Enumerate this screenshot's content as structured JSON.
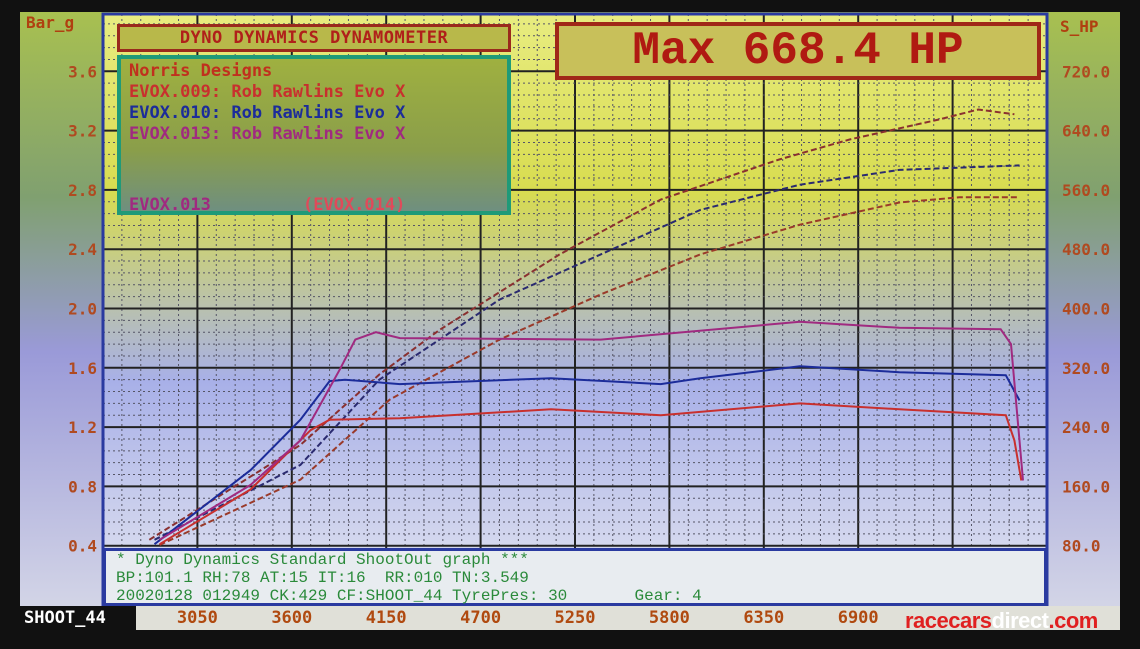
{
  "header": {
    "title": "DYNO DYNAMICS DYNAMOMETER"
  },
  "max_display": "Max 668.4 HP",
  "legend": {
    "company": "Norris Designs",
    "entries": [
      {
        "label": "EVOX.009: Rob Rawlins Evo X",
        "color": "#c8302e"
      },
      {
        "label": "EVOX.010: Rob Rawlins Evo X",
        "color": "#1c2c9a"
      },
      {
        "label": "EVOX.013: Rob Rawlins Evo X",
        "color": "#a02a80"
      }
    ],
    "current": "EVOX.013",
    "next": "(EVOX.014)"
  },
  "info": {
    "line1": "* Dyno Dynamics Standard ShootOut graph ***",
    "line2": "BP:101.1 RH:78 AT:15 IT:16  RR:010 TN:3.549",
    "line3": "20020128 012949 CK:429 CF:SHOOT_44 TyrePres: 30       Gear: 4"
  },
  "x_label_left": "SHOOT_44",
  "watermark": {
    "a": "racecars",
    "b": "direct",
    "c": ".com"
  },
  "chart_data": {
    "type": "line",
    "title": "DYNO DYNAMICS DYNAMOMETER",
    "xlim": [
      2500,
      8000
    ],
    "x_ticks": [
      "3050",
      "3600",
      "4150",
      "4700",
      "5250",
      "5800",
      "6350",
      "6900"
    ],
    "y_left": {
      "label": "Bar_g",
      "lim": [
        0,
        4.0
      ],
      "ticks": [
        "3.6",
        "3.2",
        "2.8",
        "2.4",
        "2.0",
        "1.6",
        "1.2",
        "0.8",
        "0.4"
      ]
    },
    "y_right": {
      "label": "S_HP",
      "lim": [
        0,
        800
      ],
      "ticks": [
        "720.0",
        "640.0",
        "560.0",
        "480.0",
        "400.0",
        "320.0",
        "240.0",
        "160.0",
        "80.0"
      ]
    },
    "grid": true,
    "series": [
      {
        "name": "EVOX.009",
        "kind": "power",
        "axis": "right",
        "color": "#9a3a2a",
        "x": [
          2830,
          3650,
          4170,
          4810,
          5400,
          5980,
          6560,
          7140,
          7490,
          7840
        ],
        "y": [
          81,
          169,
          277,
          358,
          419,
          473,
          513,
          543,
          550,
          550
        ]
      },
      {
        "name": "EVOX.010",
        "kind": "power",
        "axis": "right",
        "color": "#2a2a70",
        "x": [
          2800,
          3650,
          4110,
          4810,
          5400,
          5980,
          6560,
          7140,
          7840
        ],
        "y": [
          88,
          189,
          304,
          412,
          473,
          533,
          567,
          587,
          593
        ]
      },
      {
        "name": "EVOX.013",
        "kind": "power",
        "axis": "right",
        "color": "#8a3030",
        "x": [
          2770,
          3420,
          3650,
          4110,
          4460,
          5160,
          5750,
          6440,
          6850,
          7370,
          7600,
          7810
        ],
        "y": [
          88,
          182,
          216,
          311,
          371,
          473,
          547,
          601,
          628,
          655,
          668.4,
          662
        ]
      },
      {
        "name": "EVOX.009",
        "kind": "boost",
        "axis": "left",
        "color": "#c8302e",
        "x": [
          2830,
          3360,
          3710,
          3820,
          4230,
          5110,
          5750,
          6560,
          7140,
          7760,
          7810,
          7850
        ],
        "y": [
          0.41,
          0.78,
          1.18,
          1.25,
          1.26,
          1.32,
          1.28,
          1.36,
          1.32,
          1.28,
          1.11,
          0.84
        ]
      },
      {
        "name": "EVOX.010",
        "kind": "boost",
        "axis": "left",
        "color": "#1c2c9a",
        "x": [
          2800,
          3360,
          3650,
          3820,
          3910,
          4230,
          5110,
          5750,
          5980,
          6560,
          7140,
          7760,
          7840
        ],
        "y": [
          0.41,
          0.91,
          1.25,
          1.51,
          1.52,
          1.49,
          1.53,
          1.49,
          1.53,
          1.61,
          1.57,
          1.55,
          1.38
        ]
      },
      {
        "name": "EVOX.013",
        "kind": "boost",
        "axis": "left",
        "color": "#a02a80",
        "x": [
          2830,
          3360,
          3650,
          3880,
          3970,
          4090,
          4230,
          5400,
          6560,
          7140,
          7730,
          7790,
          7860
        ],
        "y": [
          0.44,
          0.81,
          1.11,
          1.59,
          1.79,
          1.84,
          1.8,
          1.79,
          1.91,
          1.87,
          1.86,
          1.76,
          0.84
        ]
      }
    ]
  }
}
